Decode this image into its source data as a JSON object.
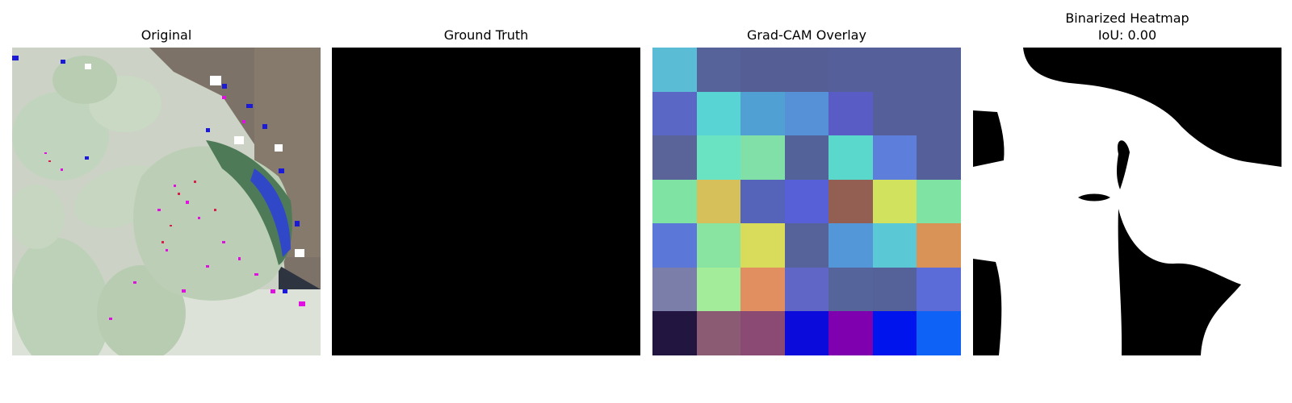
{
  "panels": [
    {
      "title": "Original"
    },
    {
      "title": "Ground Truth"
    },
    {
      "title": "Grad-CAM Overlay"
    },
    {
      "title": "Binarized Heatmap",
      "subtitle": "IoU: 0.00"
    }
  ],
  "gradcam_grid": [
    [
      "#5bbcd6",
      "#56639a",
      "#555f96",
      "#555f96",
      "#55609a",
      "#55609a",
      "#55609a"
    ],
    [
      "#5a67c5",
      "#59d4d4",
      "#51a0d4",
      "#5691d8",
      "#5a5cc6",
      "#55609a",
      "#55609a"
    ],
    [
      "#5a6498",
      "#6ae3c2",
      "#80e0a8",
      "#54629a",
      "#5ad8cc",
      "#5d7fdb",
      "#55609a"
    ],
    [
      "#7fe3a4",
      "#d6c05a",
      "#5563b8",
      "#5860d8",
      "#935f52",
      "#d0e25e",
      "#7fe3a4"
    ],
    [
      "#5b78d8",
      "#88e4a0",
      "#d8dc5a",
      "#56629a",
      "#5497d8",
      "#5bc8d6",
      "#da9356"
    ],
    [
      "#7b7ea8",
      "#a3ec9a",
      "#e18e60",
      "#5f66c5",
      "#55649a",
      "#55629a",
      "#5b6cd8"
    ],
    [
      "#221640",
      "#8b5b74",
      "#8b4a74",
      "#0b0cdc",
      "#7e00ae",
      "#0015ee",
      "#0e62f6"
    ]
  ]
}
